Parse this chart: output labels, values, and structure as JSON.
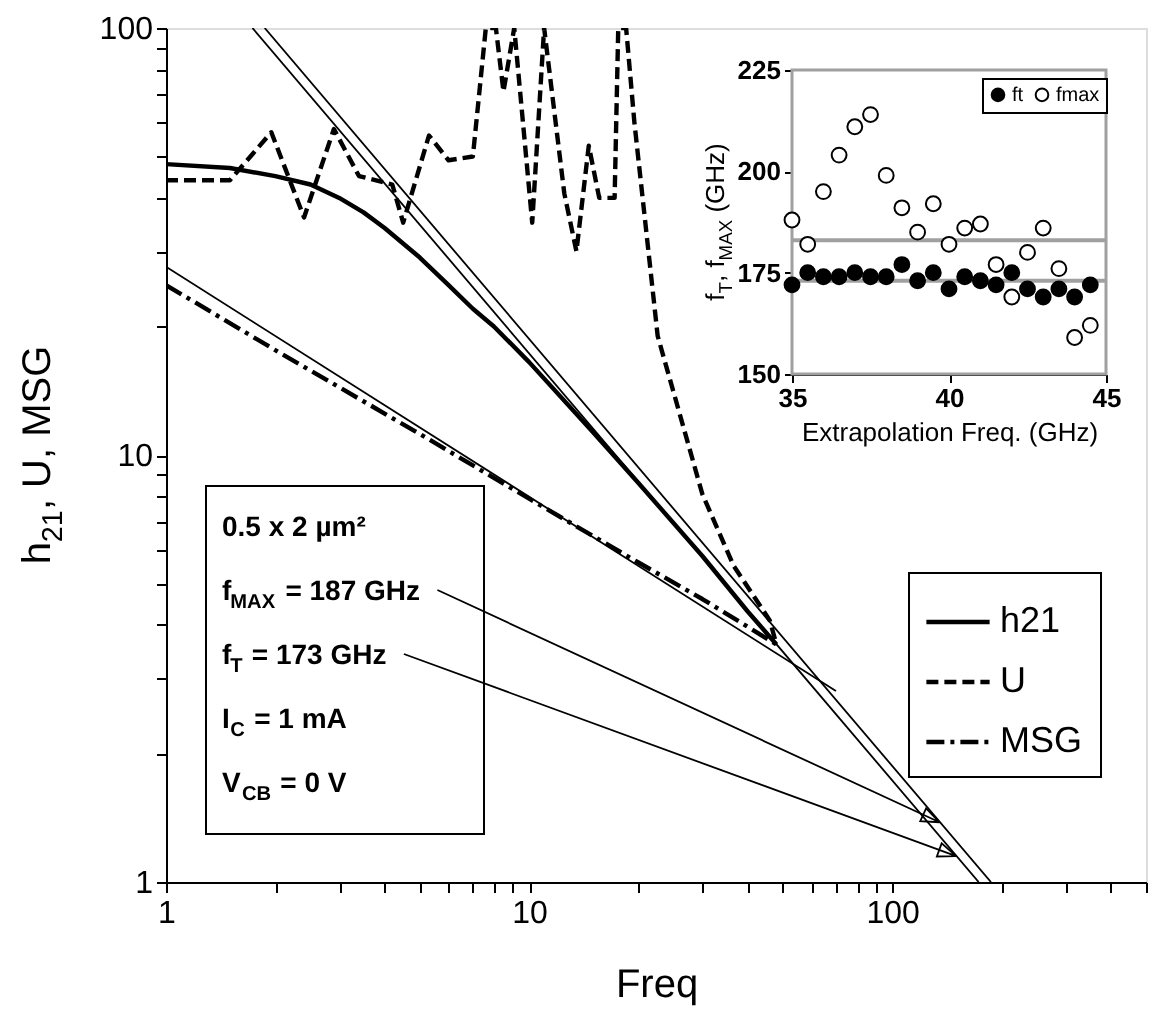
{
  "chart_data": [
    {
      "type": "line",
      "xlabel": "Freq",
      "ylabel": "h$_{21}$, U, MSG",
      "xlim": [
        1,
        500
      ],
      "ylim": [
        1,
        100
      ],
      "xticks": [
        1,
        {
          "value": 2,
          "label": null
        },
        {
          "value": 3,
          "label": null
        },
        {
          "value": 4,
          "label": null
        },
        {
          "value": 5,
          "label": null
        },
        {
          "value": 6,
          "label": null
        },
        {
          "value": 7,
          "label": null
        },
        {
          "value": 8,
          "label": null
        },
        {
          "value": 9,
          "label": null
        },
        10,
        {
          "value": 20,
          "label": null
        },
        {
          "value": 30,
          "label": null
        },
        {
          "value": 40,
          "label": null
        },
        {
          "value": 50,
          "label": null
        },
        {
          "value": 60,
          "label": null
        },
        {
          "value": 70,
          "label": null
        },
        {
          "value": 80,
          "label": null
        },
        {
          "value": 90,
          "label": null
        },
        100,
        {
          "value": 200,
          "label": null
        },
        {
          "value": 300,
          "label": null
        },
        {
          "value": 400,
          "label": null
        },
        {
          "value": 500,
          "label": null
        }
      ],
      "yticks": [
        1,
        {
          "value": 2,
          "label": null
        },
        {
          "value": 3,
          "label": null
        },
        {
          "value": 4,
          "label": null
        },
        {
          "value": 5,
          "label": null
        },
        {
          "value": 6,
          "label": null
        },
        {
          "value": 7,
          "label": null
        },
        {
          "value": 8,
          "label": null
        },
        {
          "value": 9,
          "label": null
        },
        10,
        {
          "value": 20,
          "label": null
        },
        {
          "value": 30,
          "label": null
        },
        {
          "value": 40,
          "label": null
        },
        {
          "value": 50,
          "label": null
        },
        {
          "value": 60,
          "label": null
        },
        {
          "value": 70,
          "label": null
        },
        {
          "value": 80,
          "label": null
        },
        {
          "value": 90,
          "label": null
        },
        100
      ],
      "log": "xy",
      "grid": false,
      "legend": "right",
      "annotations": [
        "0.5 x 2 µm²",
        {
          "text": "f$_{MAX}$ = 187 GHz",
          "x": 135,
          "y": 1.38
        },
        {
          "text": "f$_{T}$ = 173 GHz",
          "x": 150,
          "y": 1.15
        },
        "I$_{C}$ = 1 mA",
        "V$_{CB}$ = 0 V"
      ],
      "series": [
        {
          "name": "h21",
          "color": "#000000",
          "line_style": "solid",
          "x": [
            1,
            1.5,
            2,
            2.5,
            3,
            3.5,
            4,
            5,
            6,
            7,
            8,
            10,
            15,
            20,
            30,
            40,
            48
          ],
          "values": [
            48,
            47,
            45,
            43,
            40,
            37,
            34,
            29,
            25,
            22,
            20,
            16.5,
            11.3,
            8.6,
            5.8,
            4.3,
            3.6
          ]
        },
        {
          "name": "U",
          "color": "#000000",
          "line_style": "dashed",
          "x": [
            1,
            1.5,
            1.95,
            2.4,
            2.9,
            3.4,
            4.2,
            4.5,
            5.3,
            6,
            7,
            7.6,
            8.1,
            8.5,
            9.1,
            10.2,
            11,
            12.5,
            13.5,
            14.6,
            15.6,
            17.2,
            17.6,
            18.5,
            19.5,
            22.6,
            30,
            36.6,
            46,
            48
          ],
          "values": [
            44,
            44,
            57,
            36,
            58,
            45,
            43,
            35,
            56,
            49,
            50,
            100,
            100,
            71,
            100,
            35,
            100,
            41,
            30,
            53,
            40,
            40,
            100,
            100,
            60,
            19,
            8.1,
            5.5,
            4.1,
            3.6
          ]
        },
        {
          "name": "MSG",
          "color": "#000000",
          "line_style": "dashdot",
          "x": [
            1,
            2,
            5,
            10,
            20,
            30,
            48
          ],
          "values": [
            25,
            17.6,
            11.2,
            7.9,
            5.6,
            4.6,
            3.6
          ]
        },
        {
          "color": "#000000",
          "line_style": "solid",
          "x": [
            1.73,
            173
          ],
          "values": [
            100,
            1
          ]
        },
        {
          "color": "#000000",
          "line_style": "solid",
          "x": [
            1.87,
            187
          ],
          "values": [
            100,
            1
          ]
        },
        {
          "color": "#000000",
          "line_style": "solid",
          "x": [
            1,
            70
          ],
          "values": [
            27.6,
            2.8
          ]
        }
      ]
    },
    {
      "type": "scatter",
      "xlabel": "Extrapolation Freq. (GHz)",
      "ylabel": "f$_{T}$, f$_{MAX}$ (GHz)",
      "x": [
        35,
        35.5,
        36,
        36.5,
        37,
        37.5,
        38,
        38.5,
        39,
        39.5,
        40,
        40.5,
        41,
        41.5,
        42,
        42.5,
        43,
        43.5,
        44,
        44.5
      ],
      "xlim": [
        35,
        45
      ],
      "xticks": [
        35,
        40,
        45
      ],
      "ylim": [
        150,
        225
      ],
      "yticks": [
        150,
        175,
        200,
        225
      ],
      "marker": "circle",
      "legend": "top right",
      "grid": false,
      "ref_lines": [
        {
          "axis": "y",
          "value": 183,
          "color": "#a0a0a0"
        },
        {
          "axis": "y",
          "value": 173,
          "color": "#a0a0a0"
        }
      ],
      "series": [
        {
          "name": "ft",
          "color": "#000000",
          "values": [
            172,
            175,
            174,
            174,
            175,
            174,
            174,
            177,
            173,
            175,
            171,
            174,
            173,
            172,
            175,
            171,
            169,
            171,
            169,
            172
          ]
        },
        {
          "name": "fmax",
          "color": "#ffffff",
          "values": [
            188,
            182,
            195,
            204,
            211,
            214,
            199,
            191,
            185,
            192,
            182,
            186,
            187,
            177,
            169,
            180,
            186,
            176,
            159,
            162
          ]
        }
      ]
    }
  ]
}
